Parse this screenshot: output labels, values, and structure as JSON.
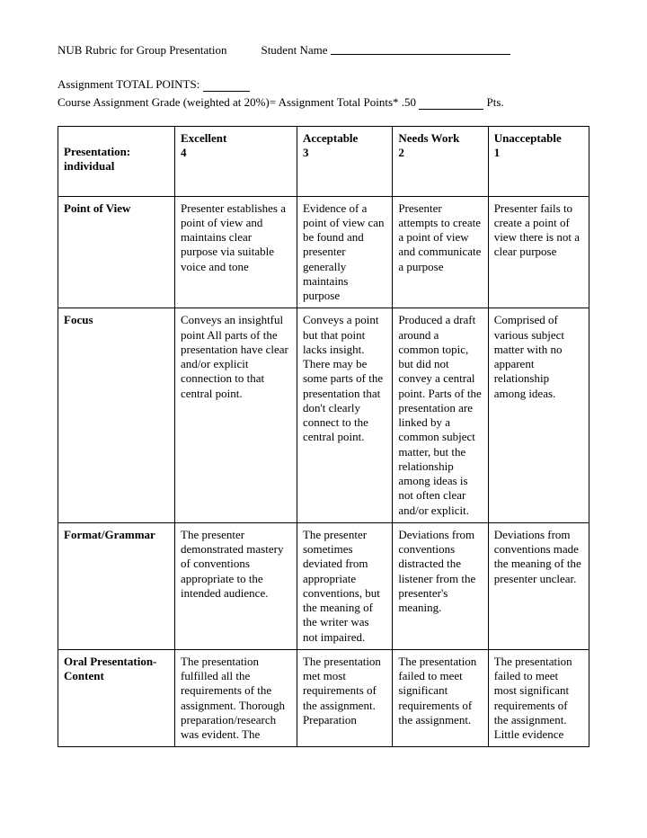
{
  "header": {
    "title": "NUB Rubric for Group Presentation",
    "student_name_label": "Student Name",
    "assignment_total_label": "Assignment TOTAL POINTS:",
    "course_grade_line_a": "Course Assignment Grade (weighted at 20%)= Assignment Total Points* .50 ",
    "pts_suffix": "Pts."
  },
  "table": {
    "header_row": {
      "c1a": "Presentation:",
      "c1b": "individual",
      "c2a": "Excellent",
      "c2b": "4",
      "c3a": "Acceptable",
      "c3b": "3",
      "c4a": "Needs Work",
      "c4b": "2",
      "c5a": "Unacceptable",
      "c5b": "1"
    },
    "rows": [
      {
        "label": "Point of View",
        "excellent": "Presenter establishes a point of view and maintains clear purpose via suitable voice and tone",
        "acceptable": "Evidence of a point of view can be found and presenter generally maintains purpose",
        "needs_work": "Presenter attempts to create a point of view and communicate a purpose",
        "unacceptable": "Presenter fails to create a point of view there is not a clear purpose"
      },
      {
        "label": "Focus",
        "excellent": "Conveys an insightful point All parts of the presentation have clear and/or explicit connection to that central point.",
        "acceptable": "Conveys a point but that point lacks insight. There may be some parts of the presentation that don't clearly connect to the central point.",
        "needs_work": "Produced a draft around a common topic, but did not convey a central point. Parts of the presentation are linked by a common subject matter, but the relationship among ideas is not often clear and/or explicit.",
        "unacceptable": "Comprised of various subject matter with no apparent relationship among ideas."
      },
      {
        "label": "Format/Grammar",
        "excellent": "The presenter demonstrated mastery of conventions appropriate to the intended audience.",
        "acceptable": "The presenter sometimes deviated from appropriate conventions, but the meaning of the writer was not impaired.",
        "needs_work": "Deviations from conventions distracted the listener from the presenter's meaning.",
        "unacceptable": "Deviations from conventions made the meaning of the presenter unclear."
      },
      {
        "label": "Oral Presentation- Content",
        "excellent": "The presentation fulfilled all the requirements of the assignment. Thorough preparation/research was evident. The",
        "acceptable": "The presentation met most requirements of the assignment. Preparation",
        "needs_work": "The presentation failed to meet significant requirements of the assignment.",
        "unacceptable": "The presentation failed to meet most significant requirements of the assignment. Little evidence"
      }
    ]
  },
  "style": {
    "background_color": "#ffffff",
    "text_color": "#000000",
    "border_color": "#000000",
    "font_family": "Garamond, Georgia, serif",
    "body_fontsize": 13,
    "col_widths_pct": [
      22,
      23,
      18,
      18,
      19
    ]
  }
}
